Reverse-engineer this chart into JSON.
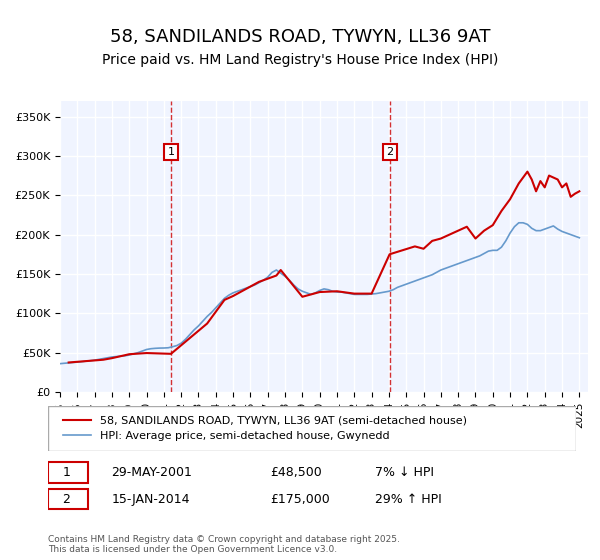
{
  "title": "58, SANDILANDS ROAD, TYWYN, LL36 9AT",
  "subtitle": "Price paid vs. HM Land Registry's House Price Index (HPI)",
  "title_fontsize": 13,
  "subtitle_fontsize": 10,
  "background_color": "#ffffff",
  "plot_bg_color": "#f0f4ff",
  "grid_color": "#ffffff",
  "ylabel_ticks": [
    "£0",
    "£50K",
    "£100K",
    "£150K",
    "£200K",
    "£250K",
    "£300K",
    "£350K"
  ],
  "ytick_values": [
    0,
    50000,
    100000,
    150000,
    200000,
    250000,
    300000,
    350000
  ],
  "xmin": 1995,
  "xmax": 2025.5,
  "ymin": 0,
  "ymax": 370000,
  "legend1_label": "58, SANDILANDS ROAD, TYWYN, LL36 9AT (semi-detached house)",
  "legend2_label": "HPI: Average price, semi-detached house, Gwynedd",
  "red_color": "#cc0000",
  "blue_color": "#6699cc",
  "marker1_date": 2001.41,
  "marker2_date": 2014.04,
  "marker1_label": "1",
  "marker2_label": "2",
  "annotation1": "1    29-MAY-2001        £48,500        7% ↓ HPI",
  "annotation2": "2    15-JAN-2014        £175,000      29% ↑ HPI",
  "footnote": "Contains HM Land Registry data © Crown copyright and database right 2025.\nThis data is licensed under the Open Government Licence v3.0.",
  "hpi_x": [
    1995.0,
    1995.25,
    1995.5,
    1995.75,
    1996.0,
    1996.25,
    1996.5,
    1996.75,
    1997.0,
    1997.25,
    1997.5,
    1997.75,
    1998.0,
    1998.25,
    1998.5,
    1998.75,
    1999.0,
    1999.25,
    1999.5,
    1999.75,
    2000.0,
    2000.25,
    2000.5,
    2000.75,
    2001.0,
    2001.25,
    2001.5,
    2001.75,
    2002.0,
    2002.25,
    2002.5,
    2002.75,
    2003.0,
    2003.25,
    2003.5,
    2003.75,
    2004.0,
    2004.25,
    2004.5,
    2004.75,
    2005.0,
    2005.25,
    2005.5,
    2005.75,
    2006.0,
    2006.25,
    2006.5,
    2006.75,
    2007.0,
    2007.25,
    2007.5,
    2007.75,
    2008.0,
    2008.25,
    2008.5,
    2008.75,
    2009.0,
    2009.25,
    2009.5,
    2009.75,
    2010.0,
    2010.25,
    2010.5,
    2010.75,
    2011.0,
    2011.25,
    2011.5,
    2011.75,
    2012.0,
    2012.25,
    2012.5,
    2012.75,
    2013.0,
    2013.25,
    2013.5,
    2013.75,
    2014.0,
    2014.25,
    2014.5,
    2014.75,
    2015.0,
    2015.25,
    2015.5,
    2015.75,
    2016.0,
    2016.25,
    2016.5,
    2016.75,
    2017.0,
    2017.25,
    2017.5,
    2017.75,
    2018.0,
    2018.25,
    2018.5,
    2018.75,
    2019.0,
    2019.25,
    2019.5,
    2019.75,
    2020.0,
    2020.25,
    2020.5,
    2020.75,
    2021.0,
    2021.25,
    2021.5,
    2021.75,
    2022.0,
    2022.25,
    2022.5,
    2022.75,
    2023.0,
    2023.25,
    2023.5,
    2023.75,
    2024.0,
    2024.25,
    2024.5,
    2024.75,
    2025.0
  ],
  "hpi_y": [
    36000,
    36500,
    37000,
    37500,
    38000,
    38500,
    39200,
    39800,
    40500,
    41500,
    42500,
    43500,
    44500,
    45000,
    45500,
    46000,
    47000,
    48500,
    50000,
    52000,
    54000,
    55000,
    55500,
    55800,
    55900,
    56200,
    57500,
    59000,
    62000,
    67000,
    73000,
    79000,
    84000,
    90000,
    96000,
    101000,
    107000,
    113000,
    119000,
    123000,
    126000,
    128000,
    130000,
    132000,
    134000,
    136000,
    139000,
    142000,
    146000,
    152000,
    155000,
    151000,
    147000,
    142000,
    136000,
    131000,
    128000,
    126000,
    124000,
    126000,
    129000,
    131000,
    130000,
    128000,
    127000,
    127000,
    126000,
    125000,
    124000,
    124000,
    124000,
    124000,
    124500,
    125000,
    126000,
    127000,
    128000,
    130000,
    133000,
    135000,
    137000,
    139000,
    141000,
    143000,
    145000,
    147000,
    149000,
    152000,
    155000,
    157000,
    159000,
    161000,
    163000,
    165000,
    167000,
    169000,
    171000,
    173000,
    176000,
    179000,
    180000,
    180000,
    184000,
    192000,
    202000,
    210000,
    215000,
    215000,
    213000,
    208000,
    205000,
    205000,
    207000,
    209000,
    211000,
    207000,
    204000,
    202000,
    200000,
    198000,
    196000
  ],
  "price_paid_x": [
    1995.5,
    1997.5,
    1998.0,
    1999.0,
    2000.0,
    2001.41,
    2003.5,
    2004.5,
    2005.0,
    2006.5,
    2007.5,
    2007.75,
    2009.0,
    2010.0,
    2011.0,
    2012.0,
    2013.0,
    2014.04,
    2015.5,
    2016.0,
    2016.5,
    2017.0,
    2017.5,
    2018.0,
    2018.5,
    2019.0,
    2019.5,
    2020.0,
    2020.5,
    2021.0,
    2021.5,
    2022.0,
    2022.25,
    2022.5,
    2022.75,
    2023.0,
    2023.25,
    2023.75,
    2024.0,
    2024.25,
    2024.5,
    2024.75,
    2025.0
  ],
  "price_paid_y": [
    37500,
    41000,
    43000,
    48000,
    49500,
    48500,
    87000,
    117000,
    122000,
    140000,
    148000,
    155000,
    121000,
    127000,
    128000,
    125000,
    125000,
    175000,
    185000,
    182000,
    192000,
    195000,
    200000,
    205000,
    210000,
    195000,
    205000,
    212000,
    230000,
    245000,
    265000,
    280000,
    270000,
    255000,
    268000,
    260000,
    275000,
    270000,
    260000,
    265000,
    248000,
    252000,
    255000
  ]
}
